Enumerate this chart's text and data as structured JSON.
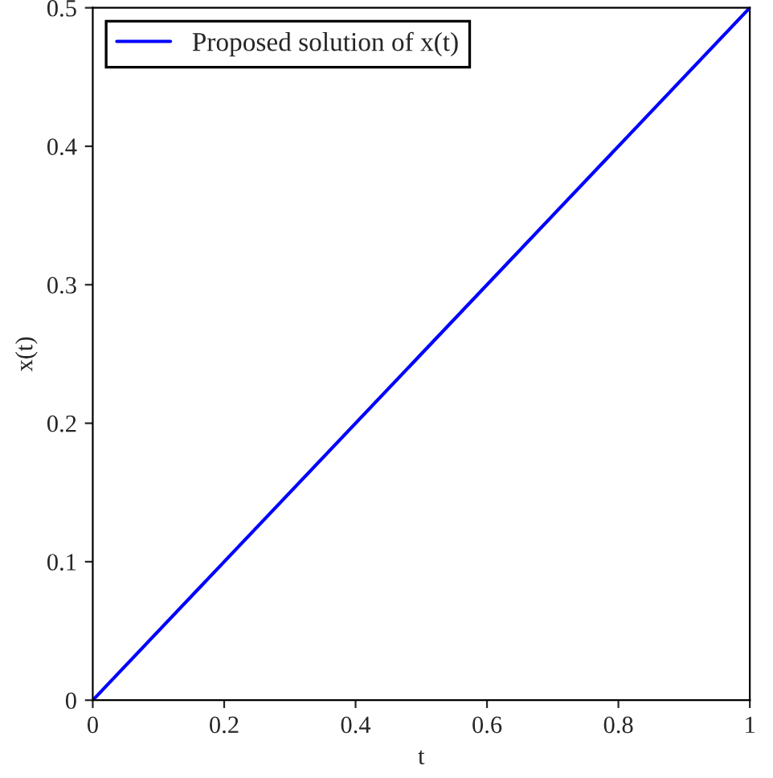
{
  "chart_data": {
    "type": "line",
    "xlabel": "t",
    "ylabel": "x(t)",
    "x": [
      0,
      1
    ],
    "series": [
      {
        "name": "Proposed solution of x(t)",
        "color": "#0000ff",
        "values": [
          0,
          0.5
        ]
      }
    ],
    "xlim": [
      0,
      1
    ],
    "ylim": [
      0,
      0.5
    ],
    "xticks": [
      0,
      0.2,
      0.4,
      0.6,
      0.8,
      1
    ],
    "yticks": [
      0,
      0.1,
      0.2,
      0.3,
      0.4,
      0.5
    ],
    "legend": "top left",
    "grid": false
  }
}
